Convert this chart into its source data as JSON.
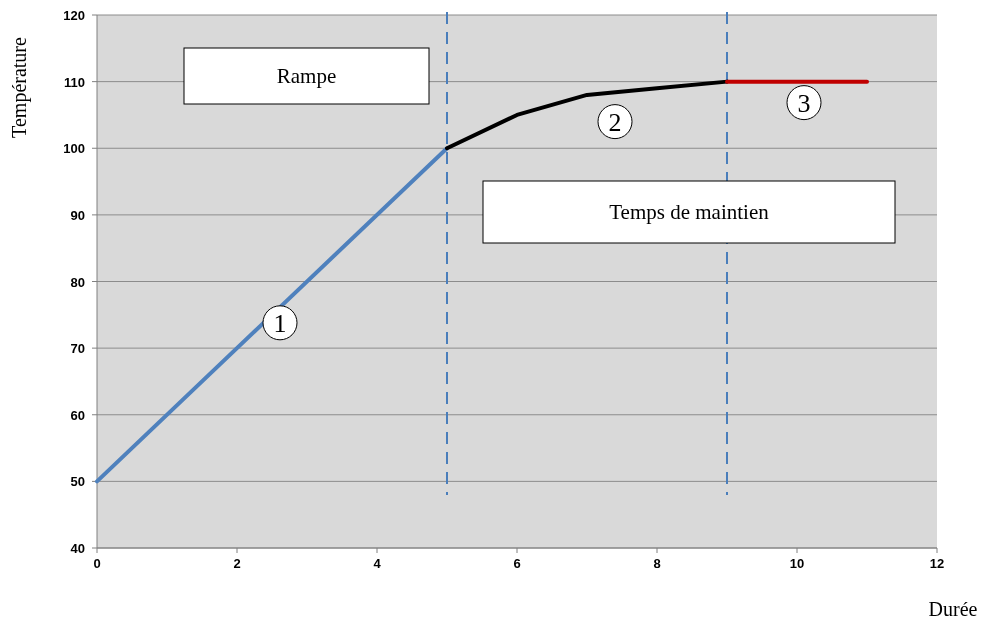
{
  "chart_data": {
    "type": "line",
    "xlabel": "Durée",
    "ylabel": "Température",
    "xlim": [
      0,
      12
    ],
    "xticks": [
      0,
      2,
      4,
      6,
      8,
      10,
      12
    ],
    "ylim": [
      40,
      120
    ],
    "yticks": [
      40,
      50,
      60,
      70,
      80,
      90,
      100,
      110,
      120
    ],
    "grid": "y",
    "marker": "none",
    "series": [
      {
        "name": "1",
        "color": "#4f81bd",
        "x": [
          0,
          5
        ],
        "values": [
          50,
          100
        ]
      },
      {
        "name": "2",
        "color": "#000000",
        "x": [
          5,
          6,
          7,
          8,
          9
        ],
        "values": [
          100,
          105,
          108,
          109,
          110
        ]
      },
      {
        "name": "3",
        "color": "#c00000",
        "x": [
          9,
          11
        ],
        "values": [
          110,
          110
        ]
      }
    ],
    "ref_lines": [
      {
        "axis": "x",
        "value": 5,
        "color": "#4a7ebb",
        "line_style": "dashed"
      },
      {
        "axis": "x",
        "value": 9,
        "color": "#4a7ebb",
        "line_style": "dashed"
      }
    ],
    "annotations": [
      "Rampe",
      "Temps de maintien"
    ]
  }
}
